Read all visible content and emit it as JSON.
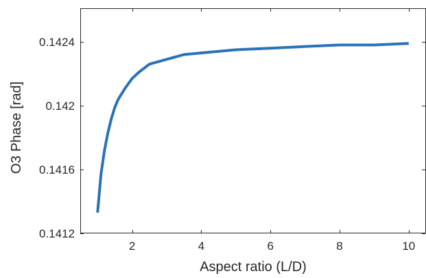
{
  "chart_data": {
    "type": "line",
    "title": "",
    "xlabel": "Aspect ratio (L/D)",
    "ylabel": "O3 Phase [rad]",
    "xlim": [
      0.5,
      10.5
    ],
    "ylim": [
      0.1412,
      0.14261
    ],
    "xticks": [
      2,
      4,
      6,
      8,
      10
    ],
    "xtick_labels": [
      "2",
      "4",
      "6",
      "8",
      "10"
    ],
    "yticks": [
      0.1412,
      0.1416,
      0.142,
      0.1424
    ],
    "ytick_labels": [
      "0.1412",
      "0.1416",
      "0.142",
      "0.1424"
    ],
    "grid": false,
    "legend": "none",
    "series": [
      {
        "color": "#2a72b8",
        "x": [
          1.0,
          1.1,
          1.2,
          1.3,
          1.4,
          1.5,
          1.6,
          1.8,
          2.0,
          2.2,
          2.5,
          3.0,
          3.5,
          4.0,
          5.0,
          6.0,
          7.0,
          8.0,
          9.0,
          10.0
        ],
        "y": [
          0.14133,
          0.14157,
          0.14172,
          0.14183,
          0.14192,
          0.14199,
          0.14204,
          0.14211,
          0.14217,
          0.14221,
          0.14226,
          0.14229,
          0.14232,
          0.14233,
          0.14235,
          0.14236,
          0.14237,
          0.14238,
          0.14238,
          0.14239
        ]
      }
    ]
  }
}
